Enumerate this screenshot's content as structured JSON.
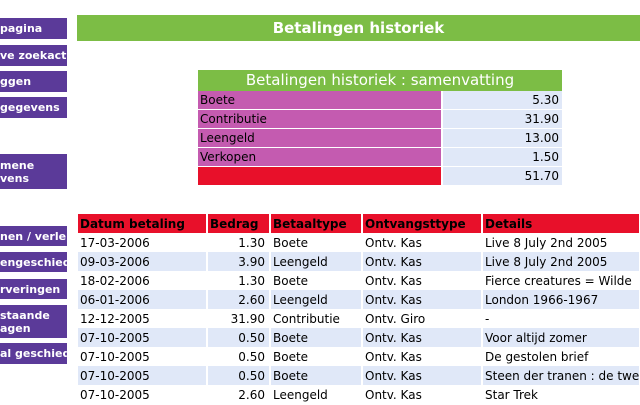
{
  "nav": [
    {
      "lines": [
        "pagina"
      ]
    },
    {
      "lines": [
        "ve zoekacties"
      ]
    },
    {
      "lines": [
        "ggen"
      ]
    },
    {
      "lines": [
        "gegevens"
      ]
    },
    {
      "lines": [
        "mene",
        "vens"
      ]
    },
    {
      "lines": [
        "nen / verleng"
      ]
    },
    {
      "lines": [
        "engeschiede"
      ]
    },
    {
      "lines": [
        "rveringen"
      ]
    },
    {
      "lines": [
        "staande",
        "agen"
      ]
    },
    {
      "lines": [
        "al geschiede"
      ]
    }
  ],
  "page_title": "Betalingen historiek",
  "summary": {
    "title": "Betalingen historiek : samenvatting",
    "rows": [
      {
        "label": "Boete",
        "value": "5.30"
      },
      {
        "label": "Contributie",
        "value": "31.90"
      },
      {
        "label": "Leengeld",
        "value": "13.00"
      },
      {
        "label": "Verkopen",
        "value": "1.50"
      }
    ],
    "total": "51.70"
  },
  "history": {
    "headers": [
      "Datum betaling",
      "Bedrag",
      "Betaaltype",
      "Ontvangsttype",
      "Details"
    ],
    "rows": [
      [
        "17-03-2006",
        "1.30",
        "Boete",
        "Ontv. Kas",
        "Live 8 July 2nd 2005"
      ],
      [
        "09-03-2006",
        "3.90",
        "Leengeld",
        "Ontv. Kas",
        "Live 8 July 2nd 2005"
      ],
      [
        "18-02-2006",
        "1.30",
        "Boete",
        "Ontv. Kas",
        "Fierce creatures = Wilde"
      ],
      [
        "06-01-2006",
        "2.60",
        "Leengeld",
        "Ontv. Kas",
        "London 1966-1967"
      ],
      [
        "12-12-2005",
        "31.90",
        "Contributie",
        "Ontv. Giro",
        "-"
      ],
      [
        "07-10-2005",
        "0.50",
        "Boete",
        "Ontv. Kas",
        "Voor altijd zomer"
      ],
      [
        "07-10-2005",
        "0.50",
        "Boete",
        "Ontv. Kas",
        "De gestolen brief"
      ],
      [
        "07-10-2005",
        "0.50",
        "Boete",
        "Ontv. Kas",
        "Steen der tranen : de twe"
      ],
      [
        "07-10-2005",
        "2.60",
        "Leengeld",
        "Ontv. Kas",
        "Star Trek"
      ]
    ]
  },
  "colors": {
    "nav": "#5b3a99",
    "header_green": "#7cbd45",
    "label_magenta": "#c45bb0",
    "total_red": "#e8102a",
    "row_alt": "#e0e8f8"
  }
}
